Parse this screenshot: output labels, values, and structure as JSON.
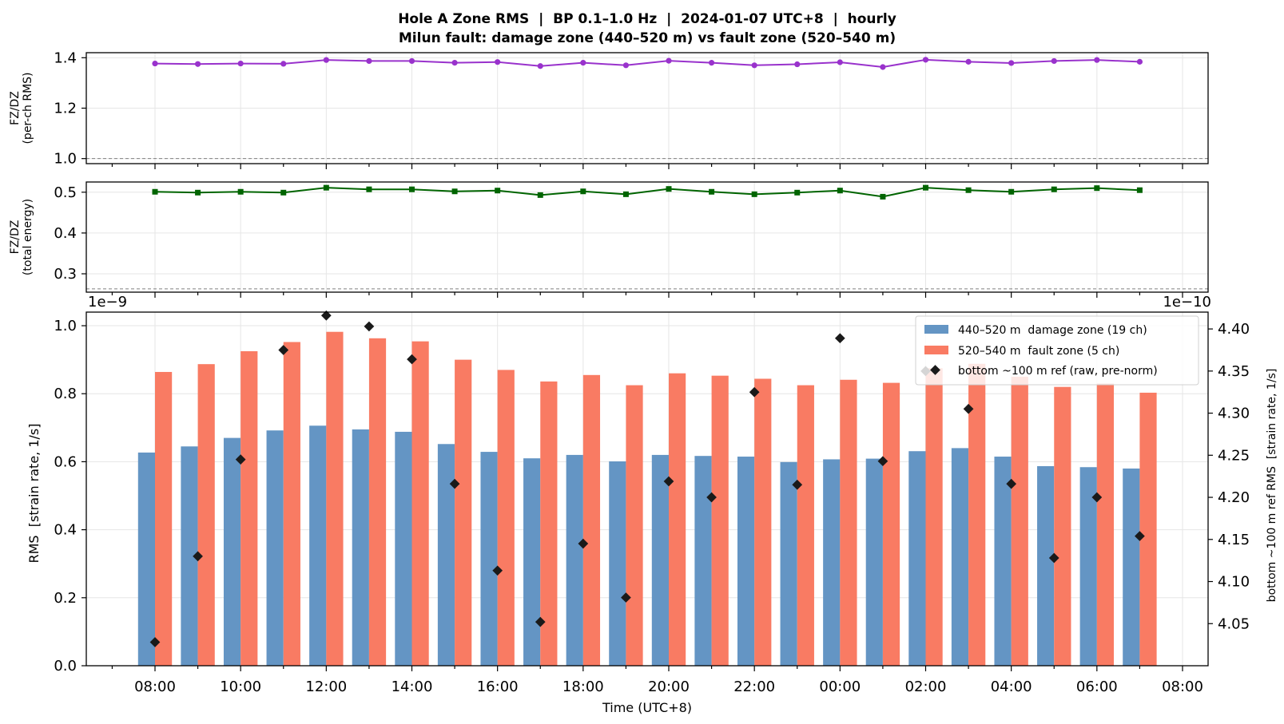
{
  "title_line1": "Hole A Zone RMS  |  BP 0.1–1.0 Hz  |  2024-01-07 UTC+8  |  hourly",
  "title_line2": "Milun fault: damage zone (440–520 m) vs fault zone (520–540 m)",
  "colors": {
    "damage_zone": "#6495c4",
    "fault_zone": "#f97b63",
    "ref_marker": "#1a1a1a",
    "ratio_rms": "#9932cc",
    "ratio_energy": "#006400",
    "grid": "#e6e6e6",
    "ref_line": "#808080"
  },
  "chart_data": [
    {
      "type": "line",
      "ylabel": [
        "FZ/DZ",
        "(per-ch RMS)"
      ],
      "ylim": [
        0.98,
        1.42
      ],
      "yticks": [
        "1.0",
        "1.2",
        "1.4"
      ],
      "ytick_values": [
        1.0,
        1.2,
        1.4
      ],
      "reference_line": 1.0,
      "grid": true,
      "marker": "circle",
      "series": [
        {
          "values": [
            1.377,
            1.375,
            1.377,
            1.376,
            1.391,
            1.387,
            1.387,
            1.38,
            1.383,
            1.367,
            1.38,
            1.37,
            1.388,
            1.38,
            1.37,
            1.374,
            1.382,
            1.363,
            1.392,
            1.384,
            1.379,
            1.387,
            1.391,
            1.384
          ]
        }
      ]
    },
    {
      "type": "line",
      "ylabel": [
        "FZ/DZ",
        "(total energy)"
      ],
      "ylim": [
        0.255,
        0.525
      ],
      "yticks": [
        "0.3",
        "0.4",
        "0.5"
      ],
      "ytick_values": [
        0.3,
        0.4,
        0.5
      ],
      "reference_line": 0.263,
      "grid": true,
      "marker": "square",
      "series": [
        {
          "values": [
            0.501,
            0.499,
            0.501,
            0.499,
            0.511,
            0.507,
            0.507,
            0.502,
            0.504,
            0.493,
            0.502,
            0.495,
            0.508,
            0.501,
            0.495,
            0.499,
            0.504,
            0.489,
            0.511,
            0.505,
            0.501,
            0.507,
            0.51,
            0.505
          ]
        }
      ]
    },
    {
      "type": "bar",
      "xlabel": "Time (UTC+8)",
      "ylabel": "RMS  [strain rate, 1/s]",
      "y_offset_label": "1e−9",
      "ylim": [
        0.0,
        1.04
      ],
      "yticks": [
        "0.0",
        "0.2",
        "0.4",
        "0.6",
        "0.8",
        "1.0"
      ],
      "ytick_values": [
        0.0,
        0.2,
        0.4,
        0.6,
        0.8,
        1.0
      ],
      "y2label": "bottom ~100 m ref RMS  [strain rate, 1/s]",
      "y2_offset_label": "1e−10",
      "y2lim": [
        4.0,
        4.42
      ],
      "y2ticks": [
        "4.05",
        "4.10",
        "4.15",
        "4.20",
        "4.25",
        "4.30",
        "4.35",
        "4.40"
      ],
      "y2tick_values": [
        4.05,
        4.1,
        4.15,
        4.2,
        4.25,
        4.3,
        4.35,
        4.4
      ],
      "grid": true,
      "legend_position": "top-right",
      "categories": [
        "08:00",
        "09:00",
        "10:00",
        "11:00",
        "12:00",
        "13:00",
        "14:00",
        "15:00",
        "16:00",
        "17:00",
        "18:00",
        "19:00",
        "20:00",
        "21:00",
        "22:00",
        "23:00",
        "00:00",
        "01:00",
        "02:00",
        "03:00",
        "04:00",
        "05:00",
        "06:00",
        "07:00"
      ],
      "xticks": [
        "08:00",
        "10:00",
        "12:00",
        "14:00",
        "16:00",
        "18:00",
        "20:00",
        "22:00",
        "00:00",
        "02:00",
        "04:00",
        "06:00",
        "08:00"
      ],
      "series": [
        {
          "name": "440–520 m  damage zone (19 ch)",
          "axis": "left",
          "kind": "bar",
          "values": [
            0.627,
            0.645,
            0.67,
            0.692,
            0.706,
            0.695,
            0.688,
            0.652,
            0.629,
            0.61,
            0.62,
            0.601,
            0.62,
            0.617,
            0.615,
            0.599,
            0.607,
            0.609,
            0.631,
            0.64,
            0.615,
            0.587,
            0.584,
            0.58
          ]
        },
        {
          "name": "520–540 m  fault zone (5 ch)",
          "axis": "left",
          "kind": "bar",
          "values": [
            0.864,
            0.887,
            0.925,
            0.952,
            0.982,
            0.963,
            0.954,
            0.9,
            0.87,
            0.836,
            0.855,
            0.825,
            0.86,
            0.853,
            0.844,
            0.825,
            0.841,
            0.832,
            0.875,
            0.888,
            0.85,
            0.82,
            0.83,
            0.803
          ]
        },
        {
          "name": "bottom ~100 m ref (raw, pre-norm)",
          "axis": "right",
          "kind": "scatter",
          "values": [
            4.028,
            4.13,
            4.245,
            4.375,
            4.416,
            4.403,
            4.364,
            4.216,
            4.113,
            4.052,
            4.145,
            4.081,
            4.219,
            4.2,
            4.325,
            4.215,
            4.389,
            4.243,
            4.35,
            4.305,
            4.216,
            4.128,
            4.2,
            4.154
          ]
        }
      ]
    }
  ]
}
